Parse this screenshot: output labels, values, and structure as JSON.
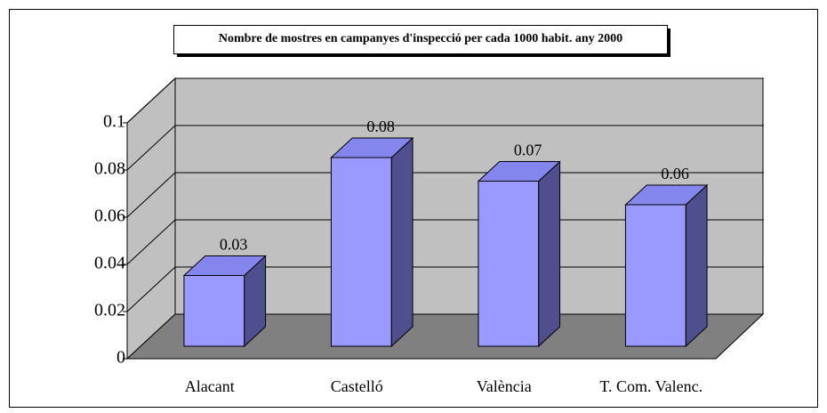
{
  "chart_data": {
    "type": "bar3d",
    "title": "Nombre de mostres en campanyes d'inspecció per cada 1000 habit. any 2000",
    "categories": [
      "Alacant",
      "Castelló",
      "València",
      "T. Com. Valenc."
    ],
    "values": [
      0.03,
      0.08,
      0.07,
      0.06
    ],
    "color": "#9999ff",
    "ylim": [
      0,
      0.1
    ],
    "yticks": [
      0,
      0.02,
      0.04,
      0.06,
      0.08,
      0.1
    ],
    "grid": true
  }
}
